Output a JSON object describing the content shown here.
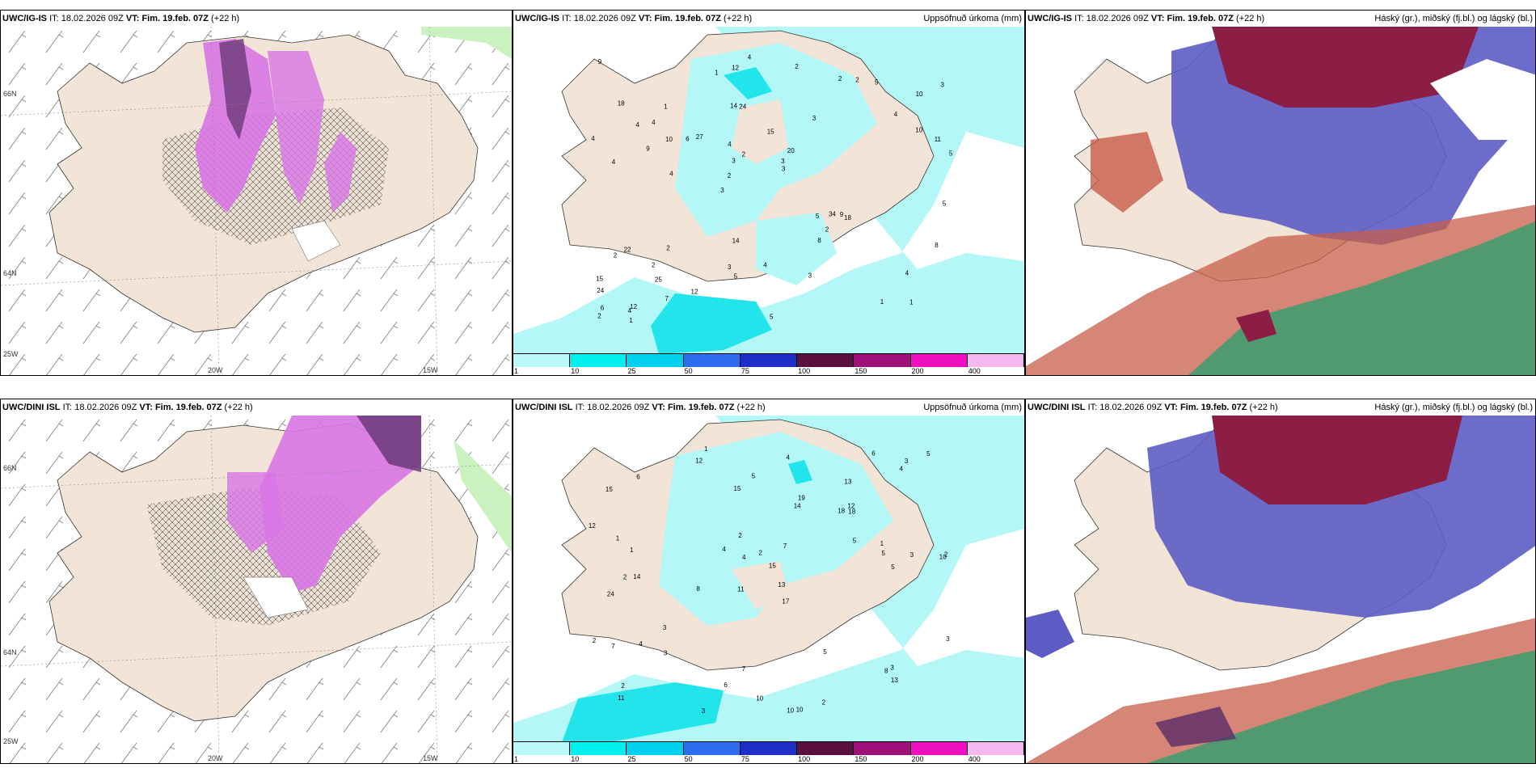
{
  "panels": [
    {
      "model": "UWC/IG-IS",
      "it_label": "IT:",
      "it": "18.02.2026 09Z",
      "vt_label": "VT:",
      "vt": "Fim. 19.feb. 07Z",
      "lead": "(+22 h)",
      "right_title": ""
    },
    {
      "model": "UWC/IG-IS",
      "it_label": "IT:",
      "it": "18.02.2026 09Z",
      "vt_label": "VT:",
      "vt": "Fim. 19.feb. 07Z",
      "lead": "(+22 h)",
      "right_title": "Uppsöfnuð úrkoma (mm)"
    },
    {
      "model": "UWC/IG-IS",
      "it_label": "IT:",
      "it": "18.02.2026 09Z",
      "vt_label": "VT:",
      "vt": "Fim. 19.feb. 07Z",
      "lead": "(+22 h)",
      "right_title": "Háský (gr.), miðský (fj.bl.) og lágský (bl.)"
    },
    {
      "model": "UWC/DINI ISL",
      "it_label": "IT:",
      "it": "18.02.2026 09Z",
      "vt_label": "VT:",
      "vt": "Fim. 19.feb. 07Z",
      "lead": "(+22 h)",
      "right_title": ""
    },
    {
      "model": "UWC/DINI ISL",
      "it_label": "IT:",
      "it": "18.02.2026 09Z",
      "vt_label": "VT:",
      "vt": "Fim. 19.feb. 07Z",
      "lead": "(+22 h)",
      "right_title": "Uppsöfnuð úrkoma (mm)"
    },
    {
      "model": "UWC/DINI ISL",
      "it_label": "IT:",
      "it": "18.02.2026 09Z",
      "vt_label": "VT:",
      "vt": "Fim. 19.feb. 07Z",
      "lead": "(+22 h)",
      "right_title": "Háský (gr.), miðský (fj.bl.) og lágský (bl.)"
    }
  ],
  "axis_labels": {
    "lat66": "66N",
    "lat64": "64N",
    "lon25": "25W",
    "lon20": "20W",
    "lon15": "15W"
  },
  "precip_scale": {
    "labels": [
      "1",
      "10",
      "25",
      "50",
      "75",
      "100",
      "150",
      "200",
      "400"
    ],
    "colors": [
      "#b9f9f9",
      "#00f0f0",
      "#00d0f0",
      "#2f6cf0",
      "#1e2fc8",
      "#5a0f3f",
      "#a0107a",
      "#f010c0",
      "#f6b6f0"
    ]
  },
  "colors": {
    "land": "#f2e4d6",
    "ocean": "#ffffff",
    "precip_light": "#b3f7f7",
    "precip_mid": "#22e5ec",
    "snow_pink": "#d875e6",
    "snow_purple": "#6b3a78",
    "high_cloud": "#5c5cc4",
    "mid_cloud": "#c75d48",
    "low_cloud": "#3a9e6e",
    "dark_red": "#8c1e46"
  },
  "precip_values_top": [
    "1",
    "4",
    "10",
    "3",
    "3",
    "12",
    "14",
    "15",
    "22",
    "27",
    "24",
    "25",
    "24",
    "20",
    "18",
    "18",
    "12",
    "5",
    "5",
    "10",
    "2",
    "3",
    "3",
    "1",
    "2",
    "2",
    "1",
    "4",
    "9",
    "5",
    "6",
    "9",
    "8",
    "7",
    "11",
    "3",
    "6",
    "5",
    "3",
    "2",
    "4",
    "3",
    "2",
    "3",
    "2",
    "1",
    "2",
    "4",
    "5",
    "4",
    "4",
    "4",
    "4",
    "2",
    "4",
    "2",
    "1",
    "2",
    "8",
    "14",
    "12",
    "34",
    "10",
    "15",
    "9",
    "4",
    "5",
    "4"
  ],
  "precip_values_bottom": [
    "1",
    "13",
    "10",
    "11",
    "17",
    "14",
    "15",
    "18",
    "24",
    "14",
    "15",
    "11",
    "12",
    "8",
    "10",
    "10",
    "7",
    "6",
    "5",
    "3",
    "1",
    "2",
    "2",
    "3",
    "2",
    "1",
    "4",
    "5",
    "3",
    "7",
    "8",
    "19",
    "4",
    "4",
    "5",
    "3",
    "1",
    "6",
    "5",
    "5",
    "2",
    "3",
    "2",
    "6",
    "10",
    "18",
    "13",
    "12",
    "12",
    "13",
    "15",
    "5",
    "7",
    "4",
    "4",
    "3",
    "2",
    "2",
    "3"
  ]
}
